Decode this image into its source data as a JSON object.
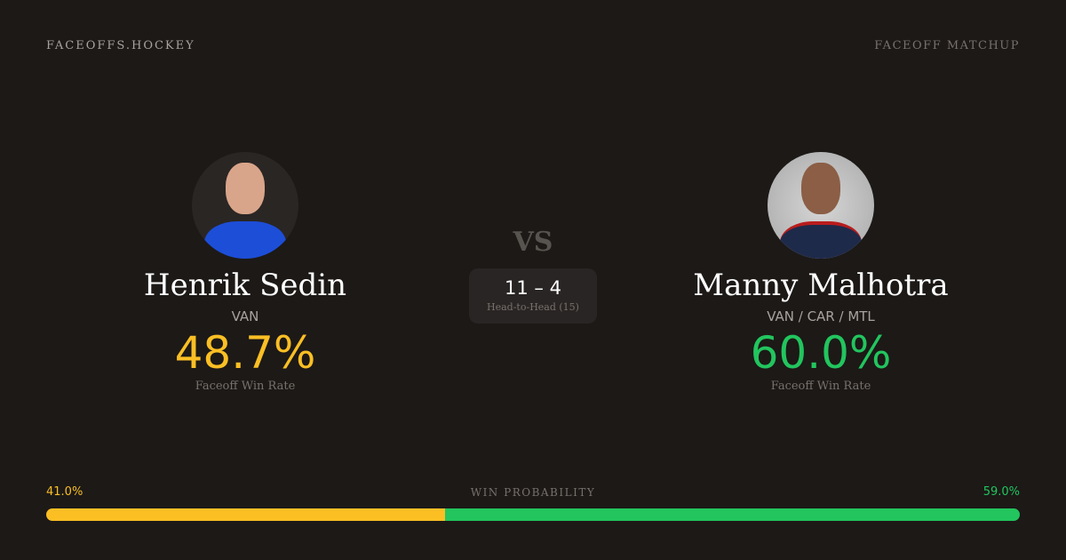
{
  "brand": "FACEOFFS.HOCKEY",
  "header_tag": "FACEOFF MATCHUP",
  "vs": "VS",
  "players": [
    {
      "name": "Henrik Sedin",
      "team": "VAN",
      "win_rate": "48.7%",
      "win_rate_label": "Faceoff Win Rate",
      "color": "#fbbf24"
    },
    {
      "name": "Manny Malhotra",
      "team": "VAN / CAR / MTL",
      "win_rate": "60.0%",
      "win_rate_label": "Faceoff Win Rate",
      "color": "#22c55e"
    }
  ],
  "head_to_head": {
    "score": "11 – 4",
    "label": "Head-to-Head (15)"
  },
  "win_probability": {
    "label": "WIN PROBABILITY",
    "left": "41.0%",
    "right": "59.0%",
    "left_fraction": 0.41
  }
}
